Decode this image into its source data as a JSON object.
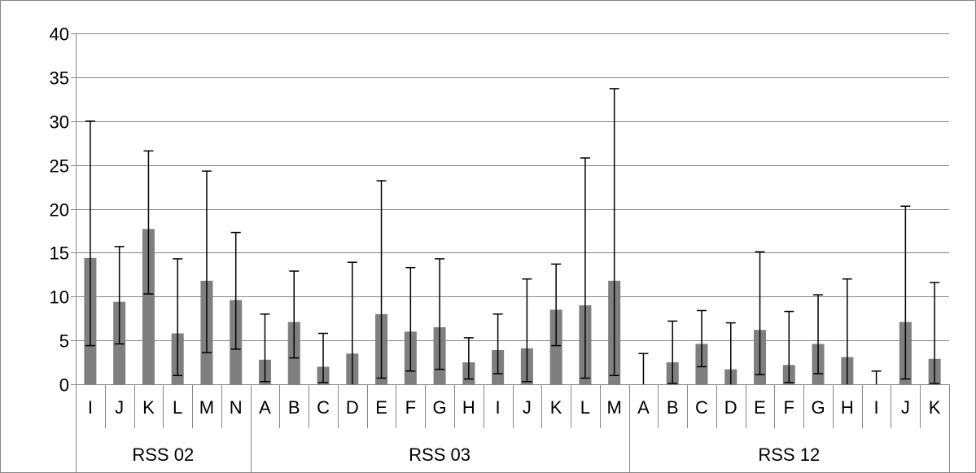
{
  "chart_data": {
    "type": "bar",
    "title": "",
    "xlabel": "",
    "ylabel": "",
    "ylim": [
      0,
      40
    ],
    "yticks": [
      0,
      5,
      10,
      15,
      20,
      25,
      30,
      35,
      40
    ],
    "grid": true,
    "legend": "none",
    "bar_color": "#7f7f7f",
    "error_color": "#000000",
    "groups": [
      {
        "name": "RSS 02",
        "categories": [
          "I",
          "J",
          "K",
          "L",
          "M",
          "N"
        ],
        "values": [
          14.4,
          9.4,
          17.7,
          5.8,
          11.8,
          9.6
        ],
        "error_low": [
          4.4,
          4.6,
          10.3,
          1.0,
          3.6,
          4.0
        ],
        "error_high": [
          30.0,
          15.7,
          26.6,
          14.3,
          24.3,
          17.3
        ]
      },
      {
        "name": "RSS 03",
        "categories": [
          "A",
          "B",
          "C",
          "D",
          "E",
          "F",
          "G",
          "H",
          "I",
          "J",
          "K",
          "L",
          "M"
        ],
        "values": [
          2.8,
          7.1,
          2.0,
          3.5,
          8.0,
          6.0,
          6.5,
          2.5,
          3.9,
          4.1,
          8.5,
          9.0,
          11.8
        ],
        "error_low": [
          0.3,
          3.0,
          0.2,
          0.0,
          0.7,
          1.5,
          1.7,
          0.6,
          1.2,
          0.3,
          4.4,
          0.7,
          1.0
        ],
        "error_high": [
          8.0,
          12.9,
          5.8,
          13.9,
          23.2,
          13.3,
          14.3,
          5.3,
          8.0,
          12.0,
          13.7,
          25.8,
          33.7
        ]
      },
      {
        "name": "RSS 12",
        "categories": [
          "A",
          "B",
          "C",
          "D",
          "E",
          "F",
          "G",
          "H",
          "I",
          "J",
          "K"
        ],
        "values": [
          0.0,
          2.5,
          4.6,
          1.7,
          6.2,
          2.2,
          4.6,
          3.1,
          0.0,
          7.1,
          2.9
        ],
        "error_low": [
          0.0,
          0.1,
          2.0,
          0.0,
          1.1,
          0.2,
          1.2,
          0.0,
          0.0,
          0.6,
          0.1
        ],
        "error_high": [
          3.5,
          7.2,
          8.4,
          7.0,
          15.1,
          8.3,
          10.2,
          12.0,
          1.5,
          20.3,
          11.6
        ]
      }
    ]
  }
}
